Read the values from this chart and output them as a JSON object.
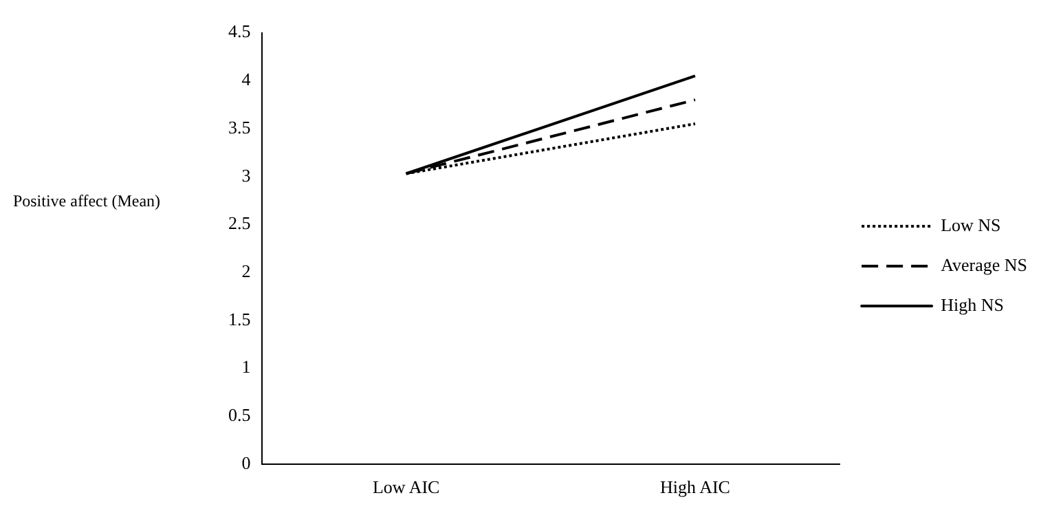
{
  "chart_data": {
    "type": "line",
    "ylabel": "Positive affect (Mean)",
    "categories": [
      "Low AIC",
      "High AIC"
    ],
    "series": [
      {
        "name": "Low NS",
        "color": "#000000",
        "values": [
          3.03,
          3.55
        ],
        "line_style": "dotted"
      },
      {
        "name": "Average NS",
        "color": "#000000",
        "values": [
          3.03,
          3.8
        ],
        "line_style": "dashed"
      },
      {
        "name": "High NS",
        "color": "#000000",
        "values": [
          3.03,
          4.05
        ],
        "line_style": "solid"
      }
    ],
    "ylim": [
      0,
      4.5
    ],
    "yticks": [
      0,
      0.5,
      1,
      1.5,
      2,
      2.5,
      3,
      3.5,
      4,
      4.5
    ],
    "grid": false,
    "legend": "right",
    "marker": "none"
  }
}
